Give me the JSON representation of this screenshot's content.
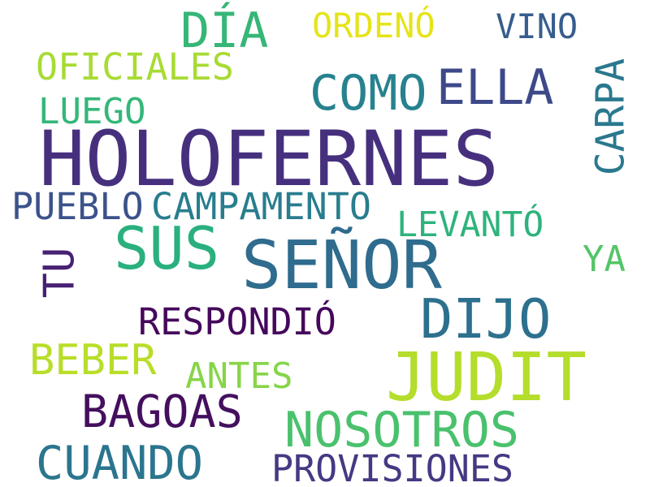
{
  "words": [
    {
      "text": "HOLOFERNES",
      "color": "#46307e"
    },
    {
      "text": "SEÑOR",
      "color": "#2f6c8e"
    },
    {
      "text": "JUDIT",
      "color": "#b4dd2c"
    },
    {
      "text": "SUS",
      "color": "#2ab07f"
    },
    {
      "text": "DIJO",
      "color": "#2d708e"
    },
    {
      "text": "DÍA",
      "color": "#36b677"
    },
    {
      "text": "ELLA",
      "color": "#3e4989"
    },
    {
      "text": "NOSOTROS",
      "color": "#4ac16d"
    },
    {
      "text": "COMO",
      "color": "#26828e"
    },
    {
      "text": "CUANDO",
      "color": "#2b758e"
    },
    {
      "text": "BAGOAS",
      "color": "#440f5e"
    },
    {
      "text": "BEBER",
      "color": "#b8de29"
    },
    {
      "text": "CARPA",
      "color": "#2a788e"
    },
    {
      "text": "TU",
      "color": "#482173"
    },
    {
      "text": "CAMPAMENTO",
      "color": "#287d8e"
    },
    {
      "text": "PUEBLO",
      "color": "#3b528b"
    },
    {
      "text": "RESPONDIÓ",
      "color": "#45085b"
    },
    {
      "text": "PROVISIONES",
      "color": "#443983"
    },
    {
      "text": "OFICIALES",
      "color": "#a8db34"
    },
    {
      "text": "LEVANTÓ",
      "color": "#2eb37c"
    },
    {
      "text": "ANTES",
      "color": "#86d549"
    },
    {
      "text": "VINO",
      "color": "#365d8d"
    },
    {
      "text": "ORDENÓ",
      "color": "#e5e419"
    },
    {
      "text": "LUEGO",
      "color": "#35b779"
    },
    {
      "text": "YA",
      "color": "#54c568"
    }
  ]
}
